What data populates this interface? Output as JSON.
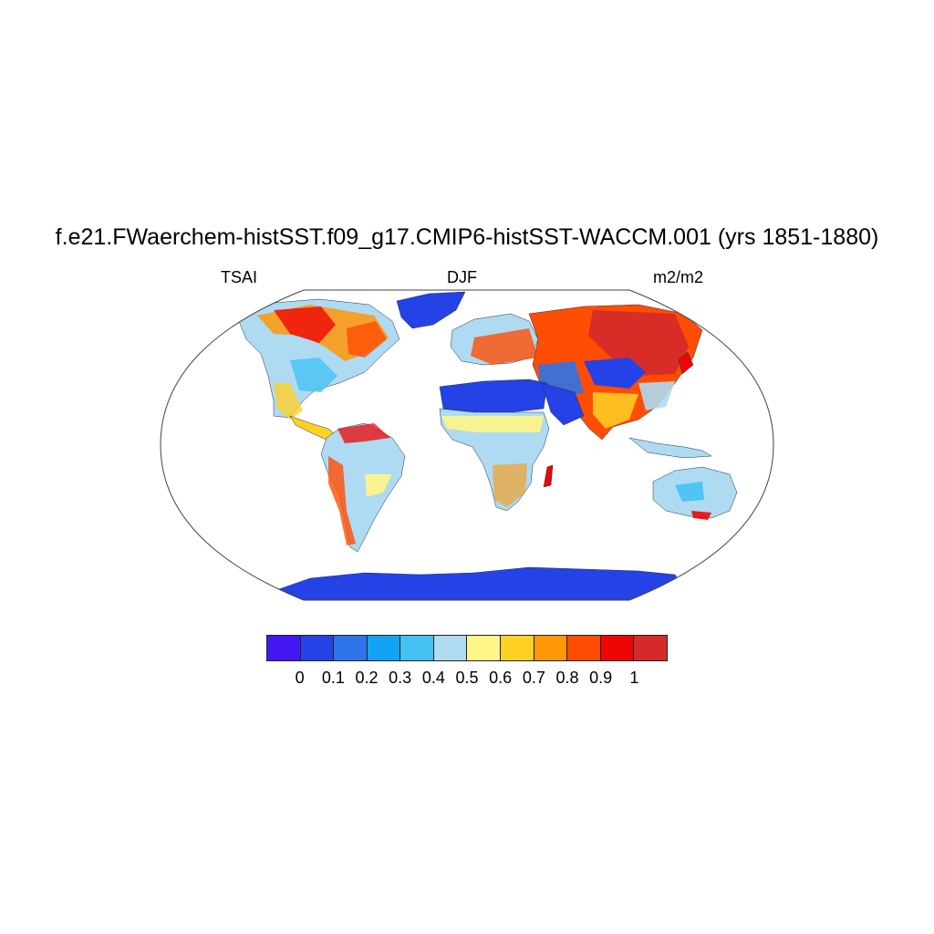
{
  "title": "f.e21.FWaerchem-histSST.f09_g17.CMIP6-histSST-WACCM.001 (yrs 1851-1880)",
  "left_label": "TSAI",
  "center_label": "DJF",
  "right_label": "m2/m2",
  "colorbar": {
    "colors": [
      "#4318f0",
      "#2542e6",
      "#2f73ea",
      "#12a3f5",
      "#45c2f4",
      "#aedaf2",
      "#fff588",
      "#ffd125",
      "#ff9707",
      "#ff4d04",
      "#ee0606",
      "#d42a2a"
    ],
    "labels": [
      "0",
      "0.1",
      "0.2",
      "0.3",
      "0.4",
      "0.5",
      "0.6",
      "0.7",
      "0.8",
      "0.9",
      "1"
    ]
  }
}
